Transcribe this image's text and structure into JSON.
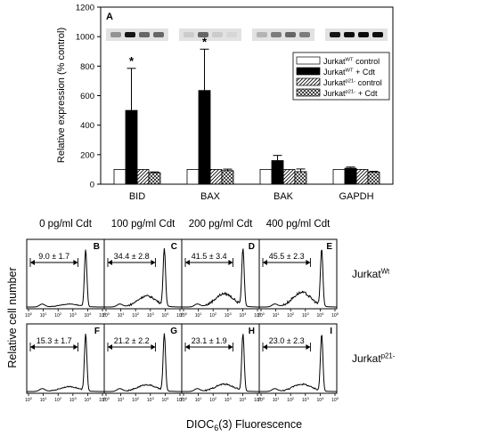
{
  "chart_data": [
    {
      "type": "bar",
      "panel_letter": "A",
      "ylabel": "Relative expression (% control)",
      "ylim": [
        0,
        1200
      ],
      "yticks": [
        0,
        200,
        400,
        600,
        800,
        1000,
        1200
      ],
      "categories": [
        "BID",
        "BAX",
        "BAK",
        "GAPDH"
      ],
      "legend_position": "top-right",
      "series": [
        {
          "key": "wt_control",
          "base": "Jurkat",
          "sup": "WT",
          "suffix": " control",
          "fill": "white",
          "values": [
            100,
            100,
            100,
            100
          ],
          "errors": [
            0,
            0,
            0,
            0
          ]
        },
        {
          "key": "wt_cdt",
          "base": "Jurkat",
          "sup": "WT",
          "suffix": " + Cdt",
          "fill": "black",
          "values": [
            500,
            635,
            160,
            108
          ],
          "errors": [
            285,
            280,
            35,
            8
          ]
        },
        {
          "key": "p21_control",
          "base": "Jurkat",
          "sup": "p21-",
          "suffix": " control",
          "fill": "diagonal",
          "values": [
            100,
            100,
            100,
            100
          ],
          "errors": [
            0,
            0,
            0,
            0
          ]
        },
        {
          "key": "p21_cdt",
          "base": "Jurkat",
          "sup": "p21-",
          "suffix": " + Cdt",
          "fill": "crosshatch",
          "values": [
            78,
            92,
            85,
            82
          ],
          "errors": [
            5,
            10,
            18,
            5
          ]
        }
      ],
      "annotations": [
        {
          "text": "*",
          "category": "BID",
          "series": "wt_cdt"
        },
        {
          "text": "*",
          "category": "BAX",
          "series": "wt_cdt"
        }
      ],
      "blots": [
        "BID",
        "BAX",
        "BAK",
        "GAPDH"
      ],
      "grid": false
    },
    {
      "type": "histogram",
      "xlabel_base": "DIOC",
      "xlabel_sub": "6",
      "xlabel_tail": "(3) Fluorescence",
      "ylabel": "Relative cell number",
      "x_scale": "log",
      "x_ticks": [
        0,
        1,
        2,
        3,
        4,
        5
      ],
      "columns": [
        "0 pg/ml Cdt",
        "100 pg/ml Cdt",
        "200 pg/ml Cdt",
        "400 pg/ml Cdt"
      ],
      "rows": [
        {
          "base": "Jurkat",
          "sup": "Wt"
        },
        {
          "base": "Jurkat",
          "sup": "p21-"
        }
      ],
      "panels": [
        {
          "letter": "B",
          "value": "9.0 ± 1.7"
        },
        {
          "letter": "C",
          "value": "34.4 ± 2.8"
        },
        {
          "letter": "D",
          "value": "41.5 ± 3.4"
        },
        {
          "letter": "E",
          "value": "45.5 ± 2.3"
        },
        {
          "letter": "F",
          "value": "15.3 ± 1.7"
        },
        {
          "letter": "G",
          "value": "21.2 ± 2.2"
        },
        {
          "letter": "H",
          "value": "23.1 ± 1.9"
        },
        {
          "letter": "I",
          "value": "23.0 ± 2.3"
        }
      ]
    }
  ]
}
